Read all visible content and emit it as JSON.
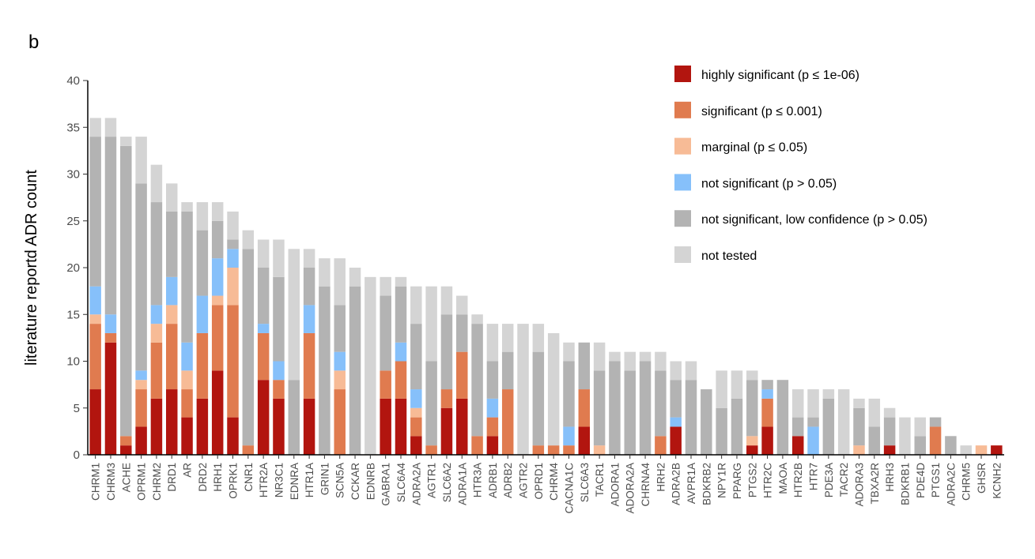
{
  "panel_label": "b",
  "chart_data": {
    "type": "bar",
    "stacked": true,
    "ylabel": "literature reportd ADR count",
    "xlabel": "",
    "ylim": [
      0,
      40
    ],
    "yticks": [
      0,
      5,
      10,
      15,
      20,
      25,
      30,
      35,
      40
    ],
    "grid": false,
    "legend_position": "top-right",
    "categories": [
      "CHRM1",
      "CHRM3",
      "ACHE",
      "OPRM1",
      "CHRM2",
      "DRD1",
      "AR",
      "DRD2",
      "HRH1",
      "OPRK1",
      "CNR1",
      "HTR2A",
      "NR3C1",
      "EDNRA",
      "HTR1A",
      "GRIN1",
      "SCN5A",
      "CCKAR",
      "EDNRB",
      "GABRA1",
      "SLC6A4",
      "ADRA2A",
      "AGTR1",
      "SLC6A2",
      "ADRA1A",
      "HTR3A",
      "ADRB1",
      "ADRB2",
      "AGTR2",
      "OPRD1",
      "CHRM4",
      "CACNA1C",
      "SLC6A3",
      "TACR1",
      "ADORA1",
      "ADORA2A",
      "CHRNA4",
      "HRH2",
      "ADRA2B",
      "AVPR1A",
      "BDKRB2",
      "NPY1R",
      "PPARG",
      "PTGS2",
      "HTR2C",
      "MAOA",
      "HTR2B",
      "HTR7",
      "PDE3A",
      "TACR2",
      "ADORA3",
      "TBXA2R",
      "HRH3",
      "BDKRB1",
      "PDE4D",
      "PTGS1",
      "ADRA2C",
      "CHRM5",
      "GHSR",
      "KCNH2"
    ],
    "series": [
      {
        "name": "highly significant (p ≤ 1e-06)",
        "color": "#b2150f",
        "values": [
          7,
          12,
          1,
          3,
          6,
          7,
          4,
          6,
          9,
          4,
          0,
          8,
          6,
          0,
          6,
          0,
          0,
          0,
          0,
          6,
          6,
          2,
          0,
          5,
          6,
          0,
          2,
          0,
          0,
          0,
          0,
          0,
          3,
          0,
          0,
          0,
          0,
          0,
          3,
          0,
          0,
          0,
          0,
          1,
          3,
          0,
          2,
          0,
          0,
          0,
          0,
          0,
          1,
          0,
          0,
          0,
          0,
          0,
          0,
          1
        ]
      },
      {
        "name": "significant (p ≤ 0.001)",
        "color": "#e07b4f",
        "values": [
          7,
          1,
          1,
          4,
          6,
          7,
          3,
          7,
          7,
          12,
          1,
          5,
          2,
          0,
          7,
          0,
          7,
          0,
          0,
          3,
          4,
          2,
          1,
          2,
          5,
          2,
          2,
          7,
          0,
          1,
          1,
          1,
          4,
          0,
          0,
          0,
          0,
          2,
          0,
          0,
          0,
          0,
          0,
          0,
          3,
          0,
          0,
          0,
          0,
          0,
          0,
          0,
          0,
          0,
          0,
          3,
          0,
          0,
          0,
          0
        ]
      },
      {
        "name": "marginal (p ≤ 0.05)",
        "color": "#f7bb96",
        "values": [
          1,
          0,
          0,
          1,
          2,
          2,
          2,
          0,
          1,
          4,
          0,
          0,
          0,
          0,
          0,
          0,
          2,
          0,
          0,
          0,
          0,
          1,
          0,
          0,
          0,
          0,
          0,
          0,
          0,
          0,
          0,
          0,
          0,
          1,
          0,
          0,
          0,
          0,
          0,
          0,
          0,
          0,
          0,
          1,
          0,
          0,
          0,
          0,
          0,
          0,
          1,
          0,
          0,
          0,
          0,
          0,
          0,
          0,
          1,
          0
        ]
      },
      {
        "name": "not significant (p > 0.05)",
        "color": "#86c0fa",
        "values": [
          3,
          2,
          0,
          1,
          2,
          3,
          3,
          4,
          4,
          2,
          0,
          1,
          2,
          0,
          3,
          0,
          2,
          0,
          0,
          0,
          2,
          2,
          0,
          0,
          0,
          0,
          2,
          0,
          0,
          0,
          0,
          2,
          0,
          0,
          0,
          0,
          0,
          0,
          1,
          0,
          0,
          0,
          0,
          0,
          1,
          0,
          0,
          3,
          0,
          0,
          0,
          0,
          0,
          0,
          0,
          0,
          0,
          0,
          0,
          0
        ]
      },
      {
        "name": "not significant, low confidence (p > 0.05)",
        "color": "#b3b3b3",
        "values": [
          16,
          19,
          31,
          20,
          11,
          7,
          14,
          7,
          4,
          1,
          21,
          6,
          9,
          8,
          4,
          18,
          5,
          18,
          0,
          8,
          6,
          7,
          9,
          8,
          4,
          12,
          4,
          4,
          0,
          10,
          0,
          7,
          5,
          8,
          10,
          9,
          10,
          7,
          4,
          8,
          7,
          5,
          6,
          6,
          1,
          8,
          2,
          1,
          6,
          0,
          4,
          3,
          3,
          0,
          2,
          1,
          2,
          0,
          0,
          0
        ]
      },
      {
        "name": "not tested",
        "color": "#d4d4d4",
        "values": [
          2,
          2,
          1,
          5,
          4,
          3,
          1,
          3,
          2,
          3,
          2,
          3,
          4,
          14,
          2,
          3,
          5,
          2,
          19,
          2,
          1,
          4,
          8,
          3,
          2,
          1,
          4,
          3,
          14,
          3,
          12,
          2,
          0,
          3,
          1,
          2,
          1,
          2,
          2,
          2,
          0,
          4,
          3,
          1,
          0,
          0,
          3,
          3,
          1,
          7,
          1,
          3,
          1,
          4,
          2,
          0,
          0,
          1,
          0,
          0
        ]
      }
    ]
  }
}
